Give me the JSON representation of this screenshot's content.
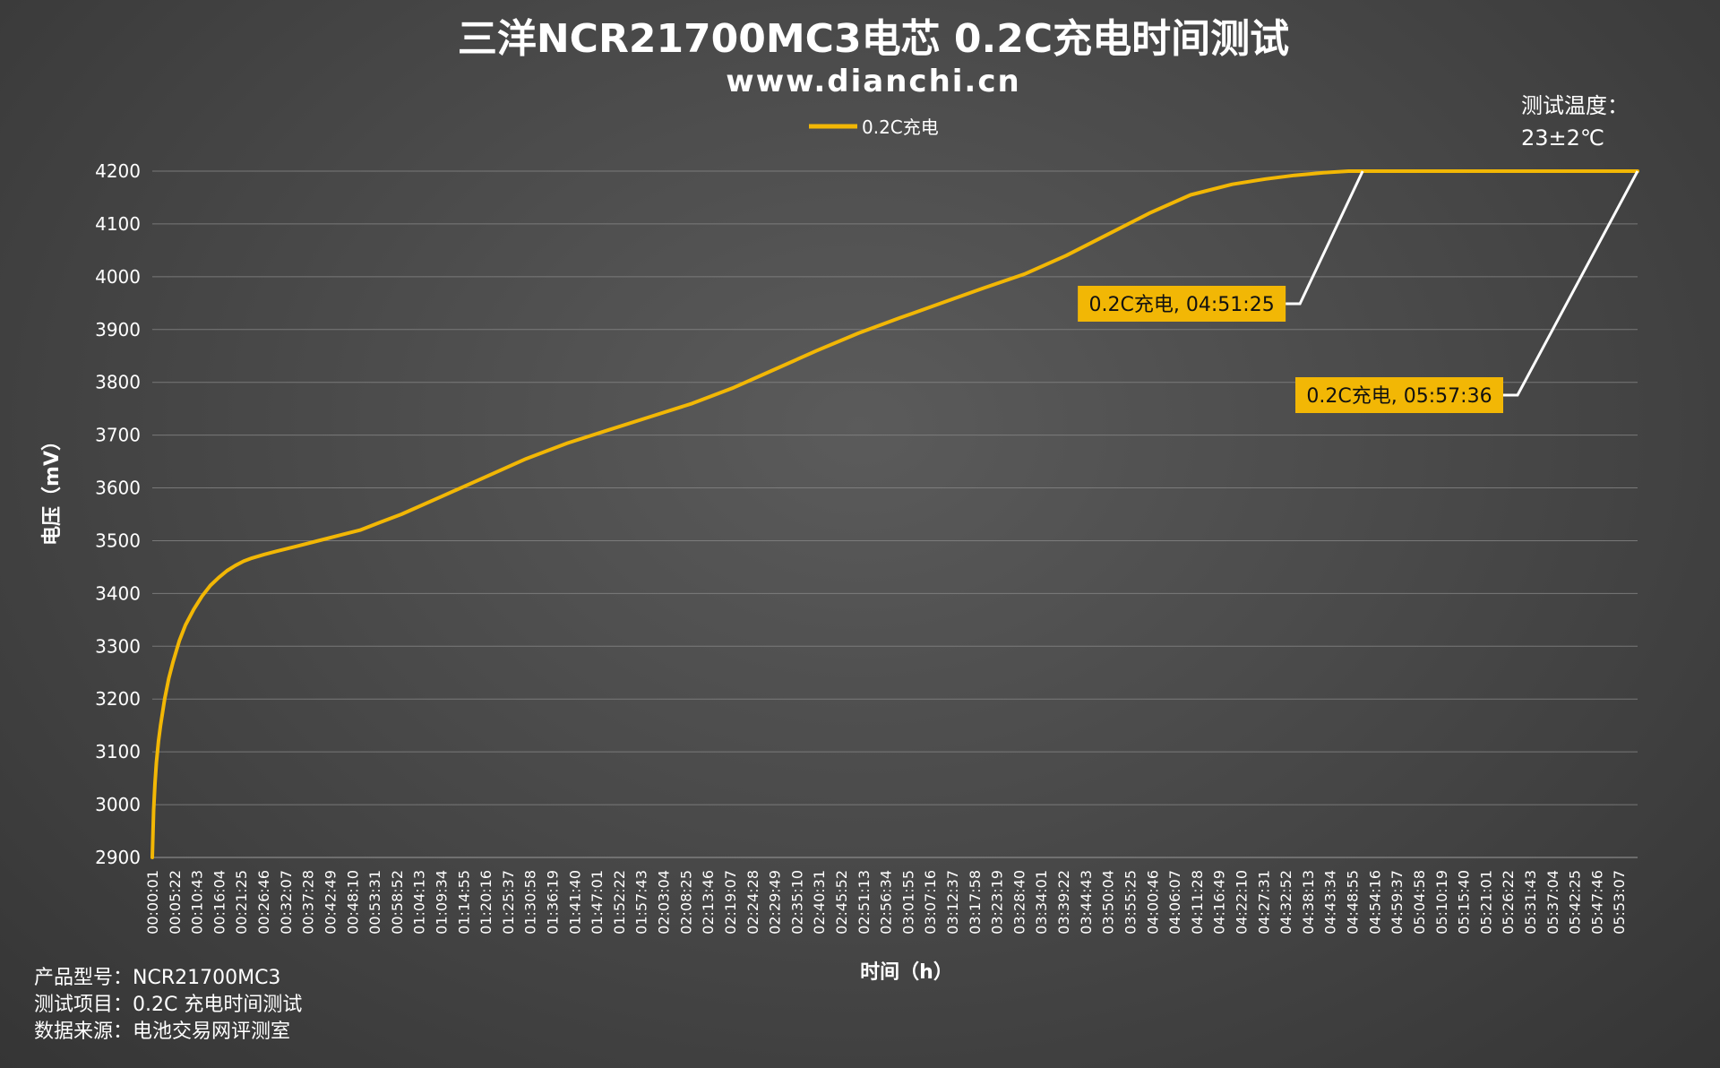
{
  "chart_data": {
    "type": "line",
    "title": "三洋NCR21700MC3电芯 0.2C充电时间测试",
    "subtitle": "www.dianchi.cn",
    "xlabel": "时间（h）",
    "ylabel": "电压（mV）",
    "ylim": [
      2900,
      4200
    ],
    "yticks": [
      2900,
      3000,
      3100,
      3200,
      3300,
      3400,
      3500,
      3600,
      3700,
      3800,
      3900,
      4000,
      4100,
      4200
    ],
    "grid": "horizontal",
    "legend_position": "top-center",
    "xlim": [
      "00:00:01",
      "05:57:36"
    ],
    "xticks": [
      "00:00:01",
      "00:05:22",
      "00:10:43",
      "00:16:04",
      "00:21:25",
      "00:26:46",
      "00:32:07",
      "00:37:28",
      "00:42:49",
      "00:48:10",
      "00:53:31",
      "00:58:52",
      "01:04:13",
      "01:09:34",
      "01:14:55",
      "01:20:16",
      "01:25:37",
      "01:30:58",
      "01:36:19",
      "01:41:40",
      "01:47:01",
      "01:52:22",
      "01:57:43",
      "02:03:04",
      "02:08:25",
      "02:13:46",
      "02:19:07",
      "02:24:28",
      "02:29:49",
      "02:35:10",
      "02:40:31",
      "02:45:52",
      "02:51:13",
      "02:56:34",
      "03:01:55",
      "03:07:16",
      "03:12:37",
      "03:17:58",
      "03:23:19",
      "03:28:40",
      "03:34:01",
      "03:39:22",
      "03:44:43",
      "03:50:04",
      "03:55:25",
      "04:00:46",
      "04:06:07",
      "04:11:28",
      "04:16:49",
      "04:22:10",
      "04:27:31",
      "04:32:52",
      "04:38:13",
      "04:43:34",
      "04:48:55",
      "04:54:16",
      "04:59:37",
      "05:04:58",
      "05:10:19",
      "05:15:40",
      "05:21:01",
      "05:26:22",
      "05:31:43",
      "05:37:04",
      "05:42:25",
      "05:47:46",
      "05:53:07"
    ],
    "series": [
      {
        "name": "0.2C充电",
        "color": "#f2b705",
        "x": [
          "00:00:01",
          "00:00:20",
          "00:00:40",
          "00:01:00",
          "00:01:30",
          "00:02:00",
          "00:03:00",
          "00:04:00",
          "00:05:00",
          "00:06:30",
          "00:08:00",
          "00:10:00",
          "00:12:00",
          "00:14:00",
          "00:16:00",
          "00:18:00",
          "00:20:00",
          "00:22:00",
          "00:24:00",
          "00:27:00",
          "00:30:00",
          "00:35:00",
          "00:40:00",
          "00:45:00",
          "00:50:00",
          "00:55:00",
          "01:00:00",
          "01:10:00",
          "01:20:00",
          "01:30:00",
          "01:40:00",
          "01:50:00",
          "02:00:00",
          "02:10:00",
          "02:20:00",
          "02:30:00",
          "02:40:00",
          "02:50:00",
          "03:00:00",
          "03:10:00",
          "03:20:00",
          "03:30:00",
          "03:40:00",
          "03:50:00",
          "04:00:00",
          "04:10:00",
          "04:20:00",
          "04:28:00",
          "04:35:00",
          "04:42:00",
          "04:48:00",
          "04:51:25",
          "04:55:00",
          "05:30:00",
          "05:57:36"
        ],
        "y": [
          2900,
          2990,
          3040,
          3080,
          3120,
          3150,
          3200,
          3240,
          3270,
          3310,
          3340,
          3370,
          3395,
          3415,
          3430,
          3443,
          3453,
          3461,
          3467,
          3474,
          3480,
          3490,
          3500,
          3510,
          3520,
          3535,
          3550,
          3585,
          3620,
          3655,
          3685,
          3710,
          3735,
          3760,
          3790,
          3825,
          3860,
          3893,
          3922,
          3950,
          3978,
          4005,
          4040,
          4080,
          4120,
          4155,
          4175,
          4185,
          4192,
          4197,
          4200,
          4200,
          4200,
          4200,
          4200
        ]
      }
    ],
    "annotations": [
      {
        "label": "0.2C充电, 04:51:25",
        "x": "04:51:25",
        "y": 4200
      },
      {
        "label": "0.2C充电, 05:57:36",
        "x": "05:57:36",
        "y": 4200
      }
    ]
  },
  "temp_note": {
    "line1": "测试温度：",
    "line2": "23±2℃"
  },
  "info": {
    "model": "产品型号：NCR21700MC3",
    "item": "测试项目：0.2C 充电时间测试",
    "source": "数据来源：电池交易网评测室"
  }
}
